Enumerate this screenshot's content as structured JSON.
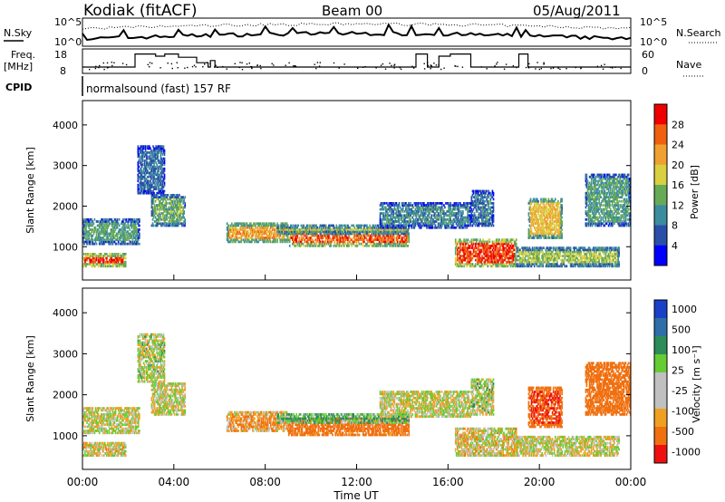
{
  "header": {
    "title": "Kodiak (fitACF)",
    "beam": "Beam 00",
    "date": "05/Aug/2011"
  },
  "top_panel": {
    "nsky_label": "N.Sky",
    "nsearch_label": "N.Search",
    "y_ticks_left": [
      "10^5",
      "10^0"
    ],
    "y_ticks_right": [
      "10^5",
      "10^0"
    ],
    "freq_label_1": "Freq.",
    "freq_label_2": "[MHz]",
    "freq_ticks": [
      "18",
      "8"
    ],
    "nave_label": "Nave",
    "nave_ticks": [
      "60",
      "0"
    ],
    "cpid_label": "CPID",
    "cpid_text": "normalsound (fast) 157 RF",
    "freq_steps": [
      [
        0,
        10.5
      ],
      [
        2.3,
        10.5
      ],
      [
        2.3,
        16.5
      ],
      [
        3.2,
        16.5
      ],
      [
        3.2,
        15.5
      ],
      [
        3.6,
        15.5
      ],
      [
        3.6,
        16.5
      ],
      [
        4.2,
        16.5
      ],
      [
        4.2,
        15
      ],
      [
        5,
        15
      ],
      [
        5,
        12.5
      ],
      [
        5.5,
        12.5
      ],
      [
        5.5,
        10.5
      ],
      [
        5.6,
        10.5
      ],
      [
        5.6,
        13.5
      ],
      [
        5.8,
        13.5
      ],
      [
        5.8,
        10.5
      ],
      [
        14.6,
        10.5
      ],
      [
        14.6,
        16.5
      ],
      [
        15.1,
        16.5
      ],
      [
        15.1,
        10.5
      ],
      [
        15.6,
        10.5
      ],
      [
        15.6,
        15.5
      ],
      [
        16.1,
        15.5
      ],
      [
        16.1,
        16.5
      ],
      [
        17,
        16.5
      ],
      [
        17,
        10.5
      ],
      [
        19.1,
        10.5
      ],
      [
        19.1,
        16.5
      ],
      [
        19.5,
        16.5
      ],
      [
        19.5,
        10.5
      ],
      [
        24,
        10.5
      ]
    ]
  },
  "power_panel": {
    "ylabel": "Slant Range [km]",
    "yticks": [
      1000,
      2000,
      3000,
      4000
    ],
    "colorbar_label": "Power [dB]",
    "colorbar_ticks": [
      "4",
      "8",
      "12",
      "16",
      "20",
      "24",
      "28"
    ],
    "colors": [
      "#0000ff",
      "#2a4fa8",
      "#3c8ca0",
      "#66aa55",
      "#d8d040",
      "#f0a030",
      "#f06010",
      "#ee0000"
    ]
  },
  "velocity_panel": {
    "ylabel": "Slant Range [km]",
    "yticks": [
      1000,
      2000,
      3000,
      4000
    ],
    "colorbar_label": "Velocity [m s⁻¹]",
    "colorbar_ticks": [
      "1000",
      "500",
      "100",
      "25",
      "-25",
      "-100",
      "-500",
      "-1000"
    ],
    "colors": [
      "#1a40c8",
      "#2f6ea8",
      "#2c8c5a",
      "#66cc33",
      "#c0c0c0",
      "#c0c0c0",
      "#f0a020",
      "#f07010",
      "#ee1010"
    ]
  },
  "chart_data": {
    "type": "heatmap",
    "xlabel": "Time UT",
    "xticks": [
      "00:00",
      "04:00",
      "08:00",
      "12:00",
      "16:00",
      "20:00",
      "00:00"
    ],
    "xlim": [
      0,
      24
    ],
    "ylim": [
      180,
      4600
    ],
    "backscatter_bands": [
      {
        "t0": 0.0,
        "t1": 1.9,
        "r0": 500,
        "r1": 850,
        "power": 28,
        "velocity": -25
      },
      {
        "t0": 0.0,
        "t1": 2.5,
        "r0": 1050,
        "r1": 1700,
        "power": 12,
        "velocity": 0
      },
      {
        "t0": 2.4,
        "t1": 3.6,
        "r0": 2300,
        "r1": 3500,
        "power": 8,
        "velocity": 25
      },
      {
        "t0": 3.0,
        "t1": 4.5,
        "r0": 1500,
        "r1": 2300,
        "power": 14,
        "velocity": 0
      },
      {
        "t0": 6.3,
        "t1": 9.0,
        "r0": 1100,
        "r1": 1600,
        "power": 22,
        "velocity": -100
      },
      {
        "t0": 9.0,
        "t1": 14.3,
        "r0": 1000,
        "r1": 1450,
        "power": 26,
        "velocity": -300
      },
      {
        "t0": 8.5,
        "t1": 14.3,
        "r0": 1300,
        "r1": 1550,
        "power": 18,
        "velocity": 150
      },
      {
        "t0": 13.0,
        "t1": 17.0,
        "r0": 1450,
        "r1": 2100,
        "power": 10,
        "velocity": 0
      },
      {
        "t0": 16.3,
        "t1": 19.0,
        "r0": 500,
        "r1": 1200,
        "power": 28,
        "velocity": -25
      },
      {
        "t0": 17.0,
        "t1": 18.0,
        "r0": 1500,
        "r1": 2400,
        "power": 9,
        "velocity": 25
      },
      {
        "t0": 19.0,
        "t1": 23.5,
        "r0": 500,
        "r1": 1000,
        "power": 16,
        "velocity": 0
      },
      {
        "t0": 19.5,
        "t1": 21.0,
        "r0": 1200,
        "r1": 2200,
        "power": 20,
        "velocity": -500
      },
      {
        "t0": 22.0,
        "t1": 24.0,
        "r0": 1500,
        "r1": 2800,
        "power": 12,
        "velocity": -400
      }
    ]
  }
}
